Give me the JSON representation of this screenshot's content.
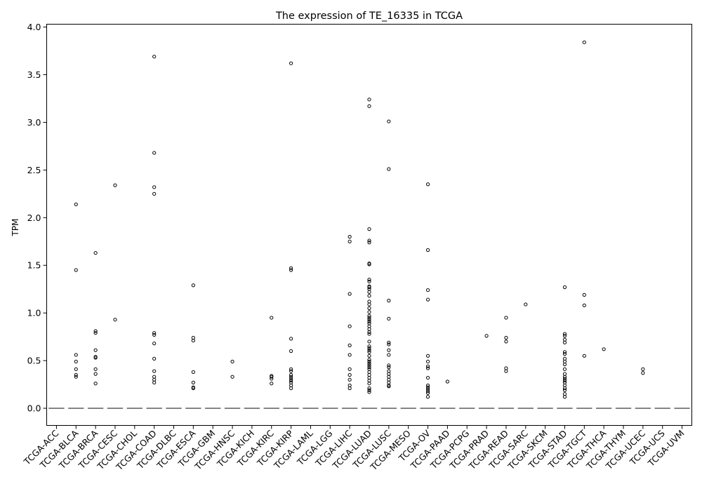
{
  "chart_data": {
    "type": "boxplot",
    "title": "The expression of TE_16335 in TCGA",
    "xlabel": "",
    "ylabel": "TPM",
    "ylim": [
      -0.18,
      4.03
    ],
    "yticks": [
      0.0,
      0.5,
      1.0,
      1.5,
      2.0,
      2.5,
      3.0,
      3.5,
      4.0
    ],
    "ytick_labels": [
      "0.0",
      "0.5",
      "1.0",
      "1.5",
      "2.0",
      "2.5",
      "3.0",
      "3.5",
      "4.0"
    ],
    "grid": false,
    "categories": [
      "TCGA-ACC",
      "TCGA-BLCA",
      "TCGA-BRCA",
      "TCGA-CESC",
      "TCGA-CHOL",
      "TCGA-COAD",
      "TCGA-DLBC",
      "TCGA-ESCA",
      "TCGA-GBM",
      "TCGA-HNSC",
      "TCGA-KICH",
      "TCGA-KIRC",
      "TCGA-KIRP",
      "TCGA-LAML",
      "TCGA-LGG",
      "TCGA-LIHC",
      "TCGA-LUAD",
      "TCGA-LUSC",
      "TCGA-MESO",
      "TCGA-OV",
      "TCGA-PAAD",
      "TCGA-PCPG",
      "TCGA-PRAD",
      "TCGA-READ",
      "TCGA-SARC",
      "TCGA-SKCM",
      "TCGA-STAD",
      "TCGA-TGCT",
      "TCGA-THCA",
      "TCGA-THYM",
      "TCGA-UCEC",
      "TCGA-UCS",
      "TCGA-UVM"
    ],
    "median": 0.0,
    "outliers": [
      [],
      [
        2.14,
        1.45,
        0.56,
        0.49,
        0.41,
        0.35,
        0.33
      ],
      [
        1.63,
        0.81,
        0.79,
        0.61,
        0.54,
        0.53,
        0.41,
        0.36,
        0.26
      ],
      [
        2.34,
        0.93
      ],
      [],
      [
        3.69,
        2.68,
        2.32,
        2.25,
        0.79,
        0.77,
        0.68,
        0.52,
        0.39,
        0.33,
        0.3,
        0.27
      ],
      [],
      [
        1.29,
        0.74,
        0.71,
        0.38,
        0.27,
        0.22,
        0.21
      ],
      [],
      [
        0.49,
        0.33
      ],
      [],
      [
        0.95,
        0.34,
        0.33,
        0.31,
        0.26
      ],
      [
        3.62,
        1.47,
        1.45,
        0.73,
        0.6,
        0.41,
        0.39,
        0.35,
        0.33,
        0.31,
        0.29,
        0.27,
        0.24,
        0.21
      ],
      [],
      [],
      [
        1.8,
        1.75,
        1.2,
        0.86,
        0.66,
        0.56,
        0.41,
        0.35,
        0.3,
        0.24,
        0.21
      ],
      [
        3.24,
        3.17,
        1.88,
        1.76,
        1.74,
        1.52,
        1.51,
        1.35,
        1.33,
        1.28,
        1.27,
        1.25,
        1.22,
        1.18,
        1.12,
        1.09,
        1.05,
        1.01,
        0.97,
        0.95,
        0.93,
        0.91,
        0.89,
        0.86,
        0.83,
        0.8,
        0.78,
        0.7,
        0.65,
        0.63,
        0.61,
        0.59,
        0.55,
        0.51,
        0.49,
        0.47,
        0.45,
        0.43,
        0.41,
        0.38,
        0.35,
        0.32,
        0.29,
        0.26,
        0.21,
        0.19,
        0.17
      ],
      [
        3.01,
        2.51,
        1.13,
        0.94,
        0.69,
        0.67,
        0.61,
        0.56,
        0.45,
        0.43,
        0.39,
        0.36,
        0.33,
        0.3,
        0.27,
        0.24,
        0.23
      ],
      [],
      [
        2.35,
        1.66,
        1.24,
        1.14,
        0.55,
        0.49,
        0.44,
        0.42,
        0.32,
        0.24,
        0.22,
        0.2,
        0.18,
        0.16,
        0.12
      ],
      [
        0.28
      ],
      [],
      [
        0.76
      ],
      [
        0.95,
        0.74,
        0.7,
        0.42,
        0.39
      ],
      [
        1.09
      ],
      [],
      [
        1.27,
        0.78,
        0.76,
        0.72,
        0.69,
        0.59,
        0.57,
        0.52,
        0.49,
        0.46,
        0.41,
        0.36,
        0.33,
        0.31,
        0.29,
        0.27,
        0.24,
        0.21,
        0.19,
        0.15,
        0.12
      ],
      [
        3.84,
        1.19,
        1.08,
        0.55
      ],
      [
        0.62
      ],
      [],
      [
        0.41,
        0.37
      ],
      [],
      []
    ]
  }
}
